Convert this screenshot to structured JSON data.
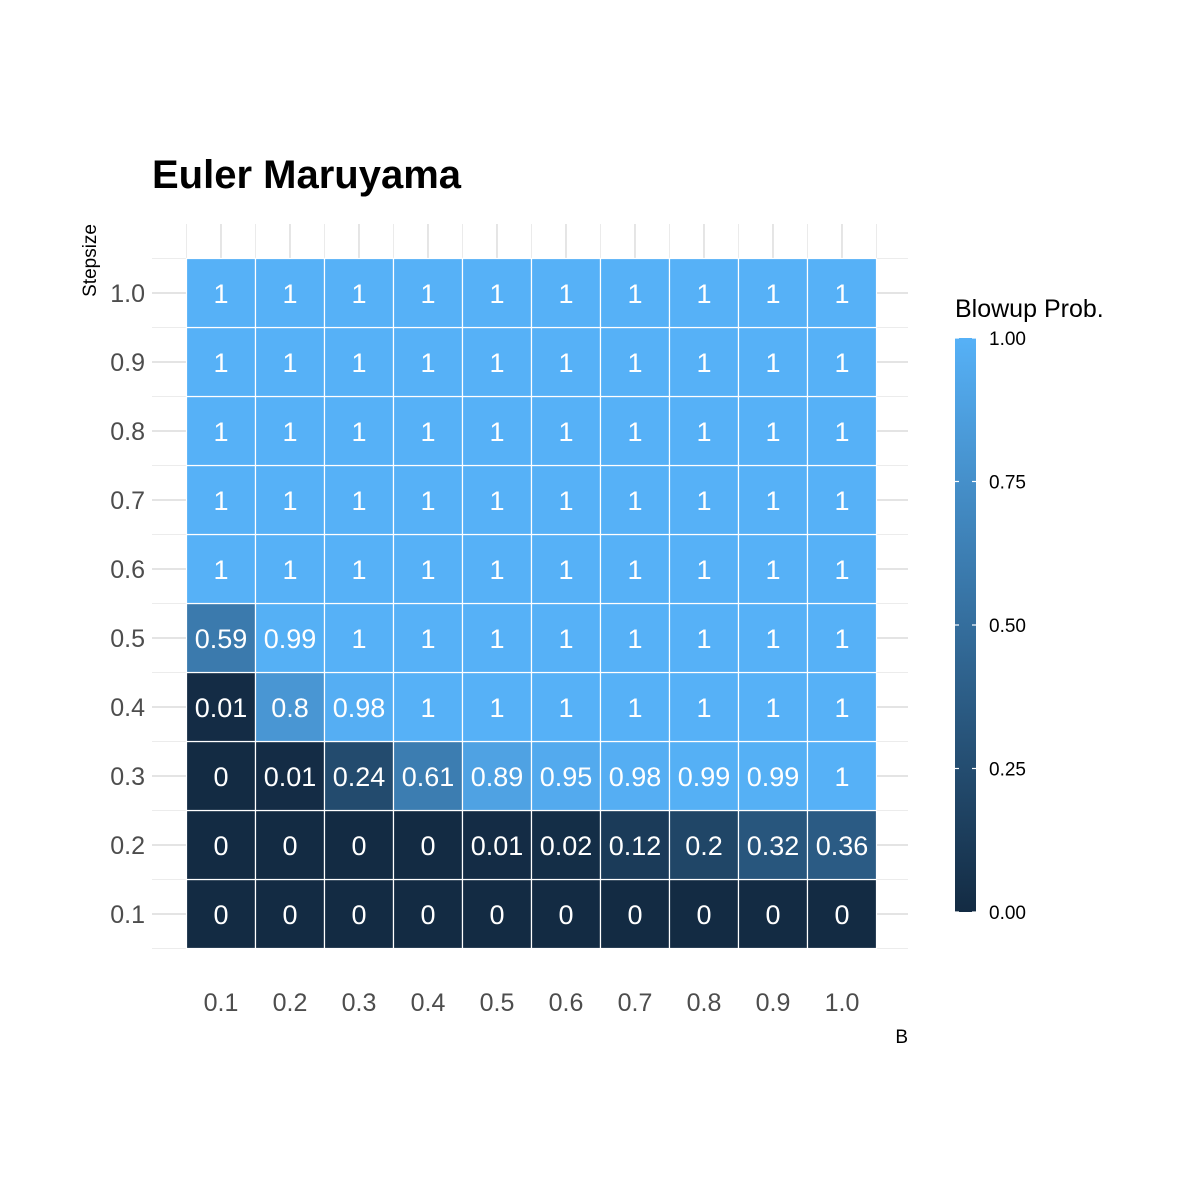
{
  "chart_data": {
    "type": "heatmap",
    "title": "Euler Maruyama",
    "xlabel": "B",
    "ylabel": "Stepsize",
    "x": [
      "0.1",
      "0.2",
      "0.3",
      "0.4",
      "0.5",
      "0.6",
      "0.7",
      "0.8",
      "0.9",
      "1.0"
    ],
    "y": [
      "0.1",
      "0.2",
      "0.3",
      "0.4",
      "0.5",
      "0.6",
      "0.7",
      "0.8",
      "0.9",
      "1.0"
    ],
    "values": [
      [
        0,
        0,
        0,
        0,
        0,
        0,
        0,
        0,
        0,
        0
      ],
      [
        0,
        0,
        0,
        0,
        0.01,
        0.02,
        0.12,
        0.2,
        0.32,
        0.36
      ],
      [
        0,
        0.01,
        0.24,
        0.61,
        0.89,
        0.95,
        0.98,
        0.99,
        0.99,
        1
      ],
      [
        0.01,
        0.8,
        0.98,
        1,
        1,
        1,
        1,
        1,
        1,
        1
      ],
      [
        0.59,
        0.99,
        1,
        1,
        1,
        1,
        1,
        1,
        1,
        1
      ],
      [
        1,
        1,
        1,
        1,
        1,
        1,
        1,
        1,
        1,
        1
      ],
      [
        1,
        1,
        1,
        1,
        1,
        1,
        1,
        1,
        1,
        1
      ],
      [
        1,
        1,
        1,
        1,
        1,
        1,
        1,
        1,
        1,
        1
      ],
      [
        1,
        1,
        1,
        1,
        1,
        1,
        1,
        1,
        1,
        1
      ],
      [
        1,
        1,
        1,
        1,
        1,
        1,
        1,
        1,
        1,
        1
      ]
    ],
    "legend": {
      "title": "Blowup Prob.",
      "ticks": [
        "0.00",
        "0.25",
        "0.50",
        "0.75",
        "1.00"
      ],
      "range": [
        0,
        1
      ],
      "low_color": "#132B43",
      "high_color": "#56B1F7",
      "placement": "right"
    },
    "grid": true
  }
}
